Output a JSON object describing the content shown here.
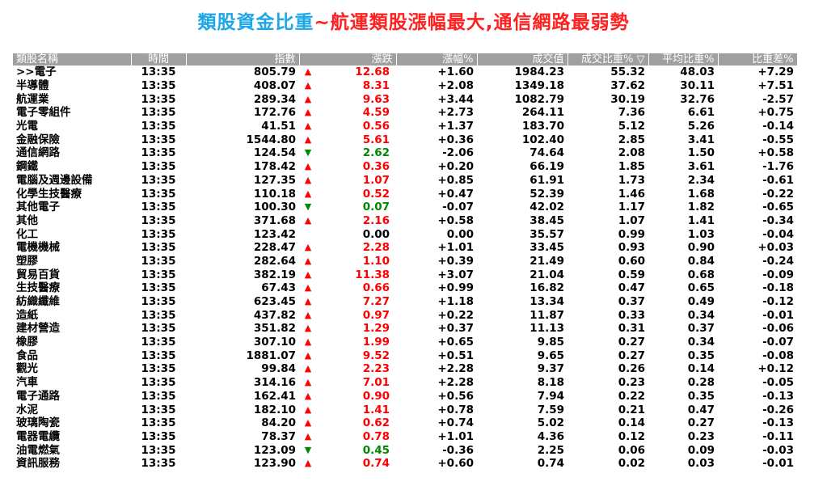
{
  "title": {
    "part1": "類股資金比重",
    "part2": "~航運類股漲幅最大,通信網路最弱勢"
  },
  "colors": {
    "title_blue": "#1ea7e8",
    "title_red": "#ff2020",
    "up": "#ff0000",
    "down": "#008800",
    "header_bg": "#a0a0a0"
  },
  "table": {
    "headers": [
      "類股名稱",
      "時間",
      "指數",
      "漲跌",
      "漲幅%",
      "成交值",
      "成交比重% ▽",
      "平均比重%",
      "比重差%"
    ],
    "rows": [
      {
        "name": ">>電子",
        "time": "13:35",
        "index": "805.79",
        "dir": "up",
        "change": "12.68",
        "pct": "+1.60",
        "value": "1984.23",
        "share": "55.32",
        "avg": "48.03",
        "diff": "+7.29"
      },
      {
        "name": "半導體",
        "time": "13:35",
        "index": "408.07",
        "dir": "up",
        "change": "8.31",
        "pct": "+2.08",
        "value": "1349.18",
        "share": "37.62",
        "avg": "30.11",
        "diff": "+7.51"
      },
      {
        "name": "航運業",
        "time": "13:35",
        "index": "289.34",
        "dir": "up",
        "change": "9.63",
        "pct": "+3.44",
        "value": "1082.79",
        "share": "30.19",
        "avg": "32.76",
        "diff": "-2.57"
      },
      {
        "name": "電子零組件",
        "time": "13:35",
        "index": "172.76",
        "dir": "up",
        "change": "4.59",
        "pct": "+2.73",
        "value": "264.11",
        "share": "7.36",
        "avg": "6.61",
        "diff": "+0.75"
      },
      {
        "name": "光電",
        "time": "13:35",
        "index": "41.51",
        "dir": "up",
        "change": "0.56",
        "pct": "+1.37",
        "value": "183.70",
        "share": "5.12",
        "avg": "5.26",
        "diff": "-0.14"
      },
      {
        "name": "金融保險",
        "time": "13:35",
        "index": "1544.80",
        "dir": "up",
        "change": "5.61",
        "pct": "+0.36",
        "value": "102.40",
        "share": "2.85",
        "avg": "3.41",
        "diff": "-0.55"
      },
      {
        "name": "通信網路",
        "time": "13:35",
        "index": "124.54",
        "dir": "down",
        "change": "2.62",
        "pct": "-2.06",
        "value": "74.64",
        "share": "2.08",
        "avg": "1.50",
        "diff": "+0.58"
      },
      {
        "name": "鋼鐵",
        "time": "13:35",
        "index": "178.42",
        "dir": "up",
        "change": "0.36",
        "pct": "+0.20",
        "value": "66.19",
        "share": "1.85",
        "avg": "3.61",
        "diff": "-1.76"
      },
      {
        "name": "電腦及週邊設備",
        "time": "13:35",
        "index": "127.35",
        "dir": "up",
        "change": "1.07",
        "pct": "+0.85",
        "value": "61.91",
        "share": "1.73",
        "avg": "2.34",
        "diff": "-0.61"
      },
      {
        "name": "化學生技醫療",
        "time": "13:35",
        "index": "110.18",
        "dir": "up",
        "change": "0.52",
        "pct": "+0.47",
        "value": "52.39",
        "share": "1.46",
        "avg": "1.68",
        "diff": "-0.22"
      },
      {
        "name": "其他電子",
        "time": "13:35",
        "index": "100.30",
        "dir": "down",
        "change": "0.07",
        "pct": "-0.07",
        "value": "42.02",
        "share": "1.17",
        "avg": "1.82",
        "diff": "-0.65"
      },
      {
        "name": "其他",
        "time": "13:35",
        "index": "371.68",
        "dir": "up",
        "change": "2.16",
        "pct": "+0.58",
        "value": "38.45",
        "share": "1.07",
        "avg": "1.41",
        "diff": "-0.34"
      },
      {
        "name": "化工",
        "time": "13:35",
        "index": "123.42",
        "dir": "flat",
        "change": "0.00",
        "pct": "0.00",
        "value": "35.57",
        "share": "0.99",
        "avg": "1.03",
        "diff": "-0.04"
      },
      {
        "name": "電機機械",
        "time": "13:35",
        "index": "228.47",
        "dir": "up",
        "change": "2.28",
        "pct": "+1.01",
        "value": "33.45",
        "share": "0.93",
        "avg": "0.90",
        "diff": "+0.03"
      },
      {
        "name": "塑膠",
        "time": "13:35",
        "index": "282.64",
        "dir": "up",
        "change": "1.10",
        "pct": "+0.39",
        "value": "21.49",
        "share": "0.60",
        "avg": "0.84",
        "diff": "-0.24"
      },
      {
        "name": "貿易百貨",
        "time": "13:35",
        "index": "382.19",
        "dir": "up",
        "change": "11.38",
        "pct": "+3.07",
        "value": "21.04",
        "share": "0.59",
        "avg": "0.68",
        "diff": "-0.09"
      },
      {
        "name": "生技醫療",
        "time": "13:35",
        "index": "67.43",
        "dir": "up",
        "change": "0.66",
        "pct": "+0.99",
        "value": "16.82",
        "share": "0.47",
        "avg": "0.65",
        "diff": "-0.18"
      },
      {
        "name": "紡織纖維",
        "time": "13:35",
        "index": "623.45",
        "dir": "up",
        "change": "7.27",
        "pct": "+1.18",
        "value": "13.34",
        "share": "0.37",
        "avg": "0.49",
        "diff": "-0.12"
      },
      {
        "name": "造紙",
        "time": "13:35",
        "index": "437.82",
        "dir": "up",
        "change": "0.97",
        "pct": "+0.22",
        "value": "11.87",
        "share": "0.33",
        "avg": "0.34",
        "diff": "-0.01"
      },
      {
        "name": "建材營造",
        "time": "13:35",
        "index": "351.82",
        "dir": "up",
        "change": "1.29",
        "pct": "+0.37",
        "value": "11.13",
        "share": "0.31",
        "avg": "0.37",
        "diff": "-0.06"
      },
      {
        "name": "橡膠",
        "time": "13:35",
        "index": "307.10",
        "dir": "up",
        "change": "1.99",
        "pct": "+0.65",
        "value": "9.85",
        "share": "0.27",
        "avg": "0.34",
        "diff": "-0.07"
      },
      {
        "name": "食品",
        "time": "13:35",
        "index": "1881.07",
        "dir": "up",
        "change": "9.52",
        "pct": "+0.51",
        "value": "9.65",
        "share": "0.27",
        "avg": "0.35",
        "diff": "-0.08"
      },
      {
        "name": "觀光",
        "time": "13:35",
        "index": "99.84",
        "dir": "up",
        "change": "2.23",
        "pct": "+2.28",
        "value": "9.37",
        "share": "0.26",
        "avg": "0.14",
        "diff": "+0.12"
      },
      {
        "name": "汽車",
        "time": "13:35",
        "index": "314.16",
        "dir": "up",
        "change": "7.01",
        "pct": "+2.28",
        "value": "8.18",
        "share": "0.23",
        "avg": "0.28",
        "diff": "-0.05"
      },
      {
        "name": "電子通路",
        "time": "13:35",
        "index": "162.41",
        "dir": "up",
        "change": "0.90",
        "pct": "+0.56",
        "value": "7.94",
        "share": "0.22",
        "avg": "0.35",
        "diff": "-0.13"
      },
      {
        "name": "水泥",
        "time": "13:35",
        "index": "182.10",
        "dir": "up",
        "change": "1.41",
        "pct": "+0.78",
        "value": "7.59",
        "share": "0.21",
        "avg": "0.47",
        "diff": "-0.26"
      },
      {
        "name": "玻璃陶瓷",
        "time": "13:35",
        "index": "84.20",
        "dir": "up",
        "change": "0.62",
        "pct": "+0.74",
        "value": "5.02",
        "share": "0.14",
        "avg": "0.27",
        "diff": "-0.13"
      },
      {
        "name": "電器電纜",
        "time": "13:35",
        "index": "78.37",
        "dir": "up",
        "change": "0.78",
        "pct": "+1.01",
        "value": "4.36",
        "share": "0.12",
        "avg": "0.23",
        "diff": "-0.11"
      },
      {
        "name": "油電燃氣",
        "time": "13:35",
        "index": "123.09",
        "dir": "down",
        "change": "0.45",
        "pct": "-0.36",
        "value": "2.25",
        "share": "0.06",
        "avg": "0.09",
        "diff": "-0.03"
      },
      {
        "name": "資訊服務",
        "time": "13:35",
        "index": "123.90",
        "dir": "up",
        "change": "0.74",
        "pct": "+0.60",
        "value": "0.74",
        "share": "0.02",
        "avg": "0.03",
        "diff": "-0.01"
      }
    ]
  }
}
